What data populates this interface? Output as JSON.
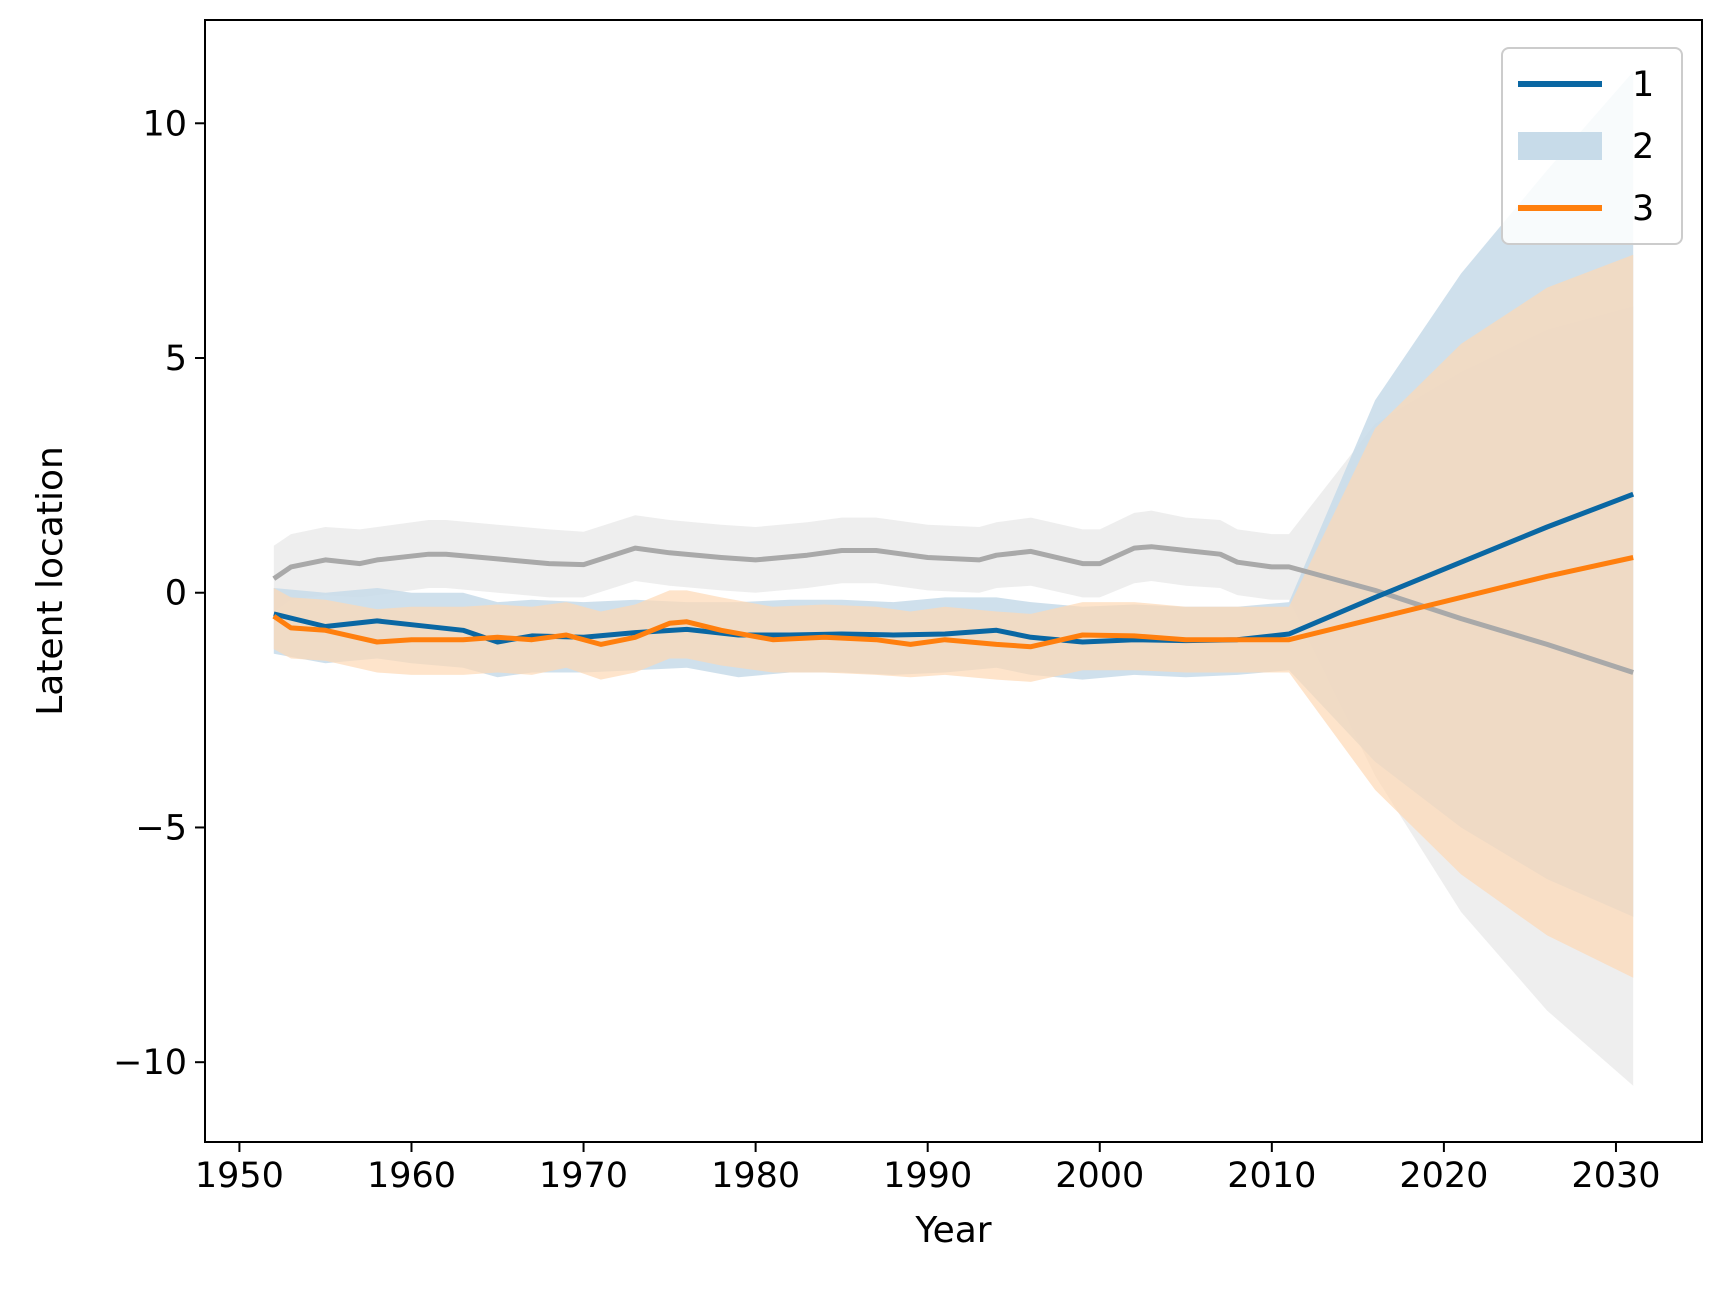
{
  "chart_data": {
    "type": "line",
    "title": "",
    "xlabel": "Year",
    "ylabel": "Latent location",
    "xlim": [
      1948,
      2035
    ],
    "ylim": [
      -11.7,
      12.2
    ],
    "xticks": [
      1950,
      1960,
      1970,
      1980,
      1990,
      2000,
      2010,
      2020,
      2030
    ],
    "yticks": [
      10,
      5,
      0,
      -5,
      -10
    ],
    "ytick_labels": [
      "10",
      "5",
      "0",
      "−5",
      "−10"
    ],
    "grid": false,
    "legend": {
      "placement": "top-right",
      "entries": [
        {
          "label": "1",
          "kind": "line",
          "color": "#0a67a3"
        },
        {
          "label": "2",
          "kind": "band",
          "color": "#c7dbe9"
        },
        {
          "label": "3",
          "kind": "line",
          "color": "#ff7f0e"
        }
      ]
    },
    "series": [
      {
        "color": "#0a67a3",
        "band_color": "#c7dbe9",
        "band_opacity": 0.85,
        "x": [
          1952,
          1955,
          1958,
          1960,
          1963,
          1965,
          1967,
          1970,
          1973,
          1976,
          1979,
          1982,
          1985,
          1988,
          1991,
          1994,
          1996,
          1999,
          2002,
          2005,
          2008,
          2011,
          2016,
          2021,
          2026,
          2031
        ],
        "mean": [
          -0.45,
          -0.72,
          -0.6,
          -0.68,
          -0.8,
          -1.05,
          -0.92,
          -0.95,
          -0.85,
          -0.78,
          -0.9,
          -0.9,
          -0.88,
          -0.9,
          -0.88,
          -0.8,
          -0.95,
          -1.05,
          -1.0,
          -1.02,
          -1.0,
          -0.88,
          -0.1,
          0.65,
          1.4,
          2.1
        ],
        "lower": [
          -1.3,
          -1.5,
          -1.4,
          -1.5,
          -1.6,
          -1.8,
          -1.7,
          -1.7,
          -1.65,
          -1.6,
          -1.8,
          -1.7,
          -1.7,
          -1.75,
          -1.7,
          -1.6,
          -1.75,
          -1.85,
          -1.75,
          -1.8,
          -1.75,
          -1.65,
          -3.6,
          -5.0,
          -6.1,
          -6.9
        ],
        "upper": [
          0.1,
          0.0,
          0.1,
          0.0,
          0.0,
          -0.2,
          -0.15,
          -0.2,
          -0.15,
          -0.2,
          -0.2,
          -0.15,
          -0.15,
          -0.2,
          -0.1,
          -0.1,
          -0.2,
          -0.3,
          -0.25,
          -0.3,
          -0.3,
          -0.2,
          4.1,
          6.8,
          9.0,
          11.1
        ]
      },
      {
        "color": "#ff7f0e",
        "band_color": "#fdd8b5",
        "band_opacity": 0.7,
        "x": [
          1952,
          1953,
          1955,
          1958,
          1960,
          1963,
          1965,
          1967,
          1969,
          1971,
          1973,
          1975,
          1976,
          1978,
          1981,
          1984,
          1987,
          1989,
          1991,
          1994,
          1996,
          1999,
          2002,
          2005,
          2008,
          2011,
          2016,
          2021,
          2026,
          2031
        ],
        "mean": [
          -0.5,
          -0.75,
          -0.8,
          -1.05,
          -1.0,
          -1.0,
          -0.95,
          -1.0,
          -0.9,
          -1.1,
          -0.95,
          -0.65,
          -0.62,
          -0.8,
          -1.0,
          -0.95,
          -1.0,
          -1.1,
          -1.0,
          -1.1,
          -1.15,
          -0.9,
          -0.92,
          -1.0,
          -1.0,
          -1.0,
          -0.55,
          -0.1,
          0.35,
          0.75
        ],
        "lower": [
          -1.2,
          -1.4,
          -1.45,
          -1.7,
          -1.75,
          -1.75,
          -1.7,
          -1.75,
          -1.6,
          -1.85,
          -1.7,
          -1.4,
          -1.4,
          -1.55,
          -1.7,
          -1.7,
          -1.75,
          -1.8,
          -1.75,
          -1.85,
          -1.9,
          -1.65,
          -1.65,
          -1.7,
          -1.7,
          -1.7,
          -4.2,
          -6.0,
          -7.3,
          -8.2
        ],
        "upper": [
          0.1,
          -0.1,
          -0.15,
          -0.35,
          -0.3,
          -0.3,
          -0.25,
          -0.3,
          -0.2,
          -0.4,
          -0.25,
          0.05,
          0.05,
          -0.1,
          -0.3,
          -0.25,
          -0.3,
          -0.4,
          -0.3,
          -0.4,
          -0.45,
          -0.2,
          -0.2,
          -0.3,
          -0.3,
          -0.3,
          3.5,
          5.3,
          6.5,
          7.2
        ]
      },
      {
        "color": "#a9a9a9",
        "band_color": "#e5e5e5",
        "band_opacity": 0.65,
        "x": [
          1952,
          1953,
          1955,
          1957,
          1958,
          1961,
          1962,
          1965,
          1968,
          1970,
          1973,
          1975,
          1978,
          1980,
          1983,
          1985,
          1987,
          1990,
          1993,
          1994,
          1996,
          1999,
          2000,
          2002,
          2003,
          2005,
          2007,
          2008,
          2010,
          2011,
          2016,
          2021,
          2026,
          2031
        ],
        "mean": [
          0.3,
          0.55,
          0.7,
          0.62,
          0.7,
          0.82,
          0.82,
          0.72,
          0.62,
          0.6,
          0.95,
          0.85,
          0.75,
          0.7,
          0.8,
          0.9,
          0.9,
          0.75,
          0.7,
          0.8,
          0.88,
          0.62,
          0.62,
          0.95,
          0.98,
          0.9,
          0.82,
          0.65,
          0.55,
          0.55,
          0.05,
          -0.55,
          -1.1,
          -1.7
        ],
        "lower": [
          -0.4,
          -0.15,
          -0.05,
          -0.1,
          -0.05,
          0.1,
          0.1,
          0.0,
          -0.1,
          -0.1,
          0.25,
          0.15,
          0.05,
          0.0,
          0.1,
          0.2,
          0.2,
          0.05,
          0.0,
          0.1,
          0.15,
          -0.1,
          -0.1,
          0.2,
          0.25,
          0.15,
          0.1,
          -0.05,
          -0.15,
          -0.15,
          -3.9,
          -6.8,
          -8.9,
          -10.5
        ],
        "upper": [
          1.0,
          1.25,
          1.4,
          1.35,
          1.4,
          1.55,
          1.55,
          1.45,
          1.35,
          1.3,
          1.65,
          1.55,
          1.45,
          1.4,
          1.5,
          1.6,
          1.6,
          1.45,
          1.4,
          1.5,
          1.6,
          1.35,
          1.35,
          1.7,
          1.75,
          1.6,
          1.55,
          1.35,
          1.25,
          1.25,
          3.6,
          4.7,
          5.6,
          6.1
        ]
      }
    ]
  }
}
